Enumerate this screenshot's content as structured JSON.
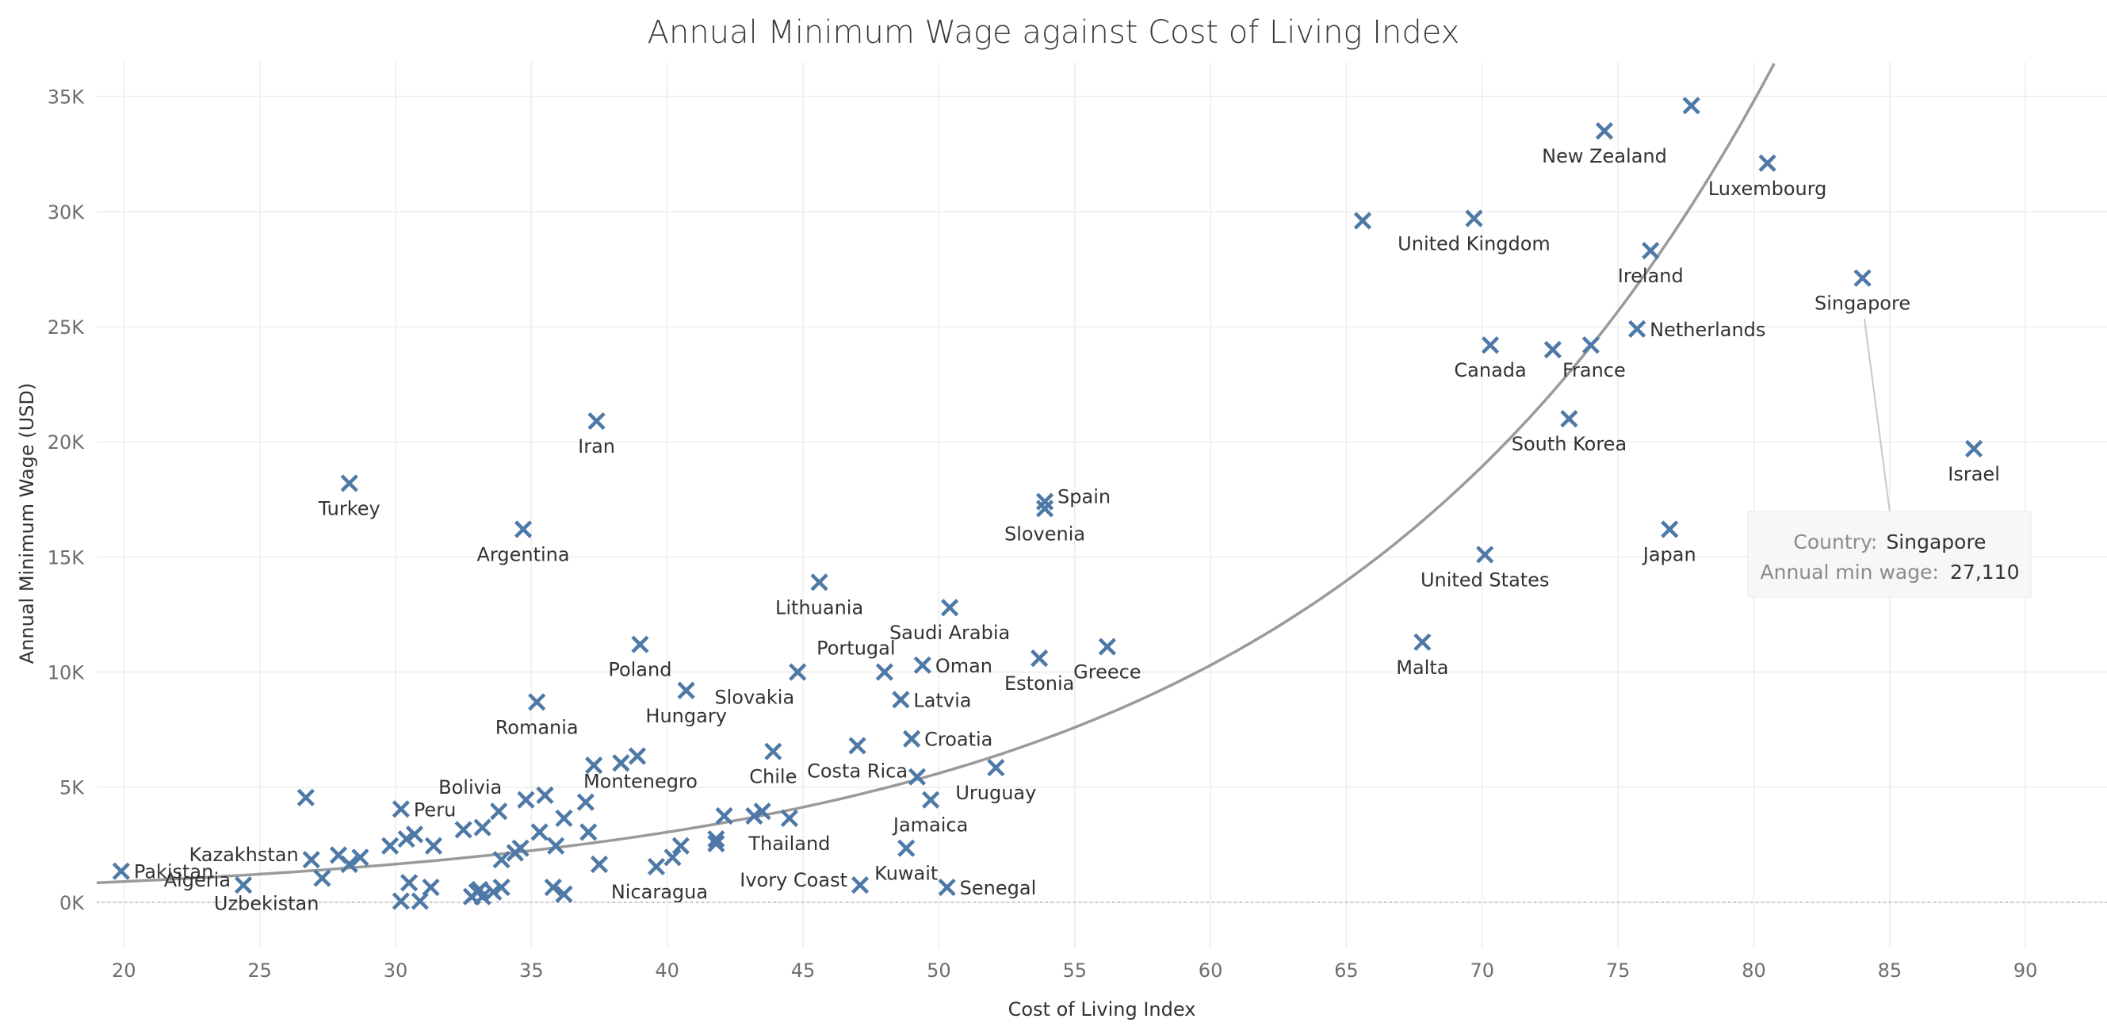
{
  "chart_data": {
    "type": "scatter",
    "title": "Annual Minimum Wage against Cost of Living Index",
    "xlabel": "Cost of Living Index",
    "ylabel": "Annual Minimum Wage (USD)",
    "xlim": [
      19,
      93
    ],
    "ylim": [
      -2000,
      36500
    ],
    "x_ticks": [
      20,
      25,
      30,
      35,
      40,
      45,
      50,
      55,
      60,
      65,
      70,
      75,
      80,
      85,
      90
    ],
    "y_ticks": [
      0,
      5000,
      10000,
      15000,
      20000,
      25000,
      30000,
      35000
    ],
    "y_tick_labels": [
      "0K",
      "5K",
      "10K",
      "15K",
      "20K",
      "25K",
      "30K",
      "35K"
    ],
    "grid": true,
    "marker": "x",
    "marker_color": "#4e79a7",
    "trend_line": {
      "type": "exponential",
      "color": "#9a9a9a"
    },
    "points": [
      {
        "label": "Pakistan",
        "x": 19.9,
        "y": 1350
      },
      {
        "label": "Algeria",
        "x": 24.4,
        "y": 750
      },
      {
        "label": "",
        "x": 26.7,
        "y": 4550
      },
      {
        "label": "Kazakhstan",
        "x": 26.9,
        "y": 1850
      },
      {
        "label": "Uzbekistan",
        "x": 27.3,
        "y": 1050
      },
      {
        "label": "",
        "x": 27.9,
        "y": 2050
      },
      {
        "label": "",
        "x": 28.3,
        "y": 1650
      },
      {
        "label": "Turkey",
        "x": 28.3,
        "y": 18200
      },
      {
        "label": "",
        "x": 28.7,
        "y": 1950
      },
      {
        "label": "",
        "x": 29.8,
        "y": 2450
      },
      {
        "label": "Peru",
        "x": 30.2,
        "y": 4050
      },
      {
        "label": "",
        "x": 30.2,
        "y": 50
      },
      {
        "label": "",
        "x": 30.4,
        "y": 2750
      },
      {
        "label": "",
        "x": 30.5,
        "y": 850
      },
      {
        "label": "",
        "x": 30.7,
        "y": 2950
      },
      {
        "label": "",
        "x": 30.9,
        "y": 50
      },
      {
        "label": "",
        "x": 31.3,
        "y": 650
      },
      {
        "label": "",
        "x": 31.4,
        "y": 2450
      },
      {
        "label": "",
        "x": 32.5,
        "y": 3150
      },
      {
        "label": "",
        "x": 32.8,
        "y": 250
      },
      {
        "label": "",
        "x": 33.0,
        "y": 450
      },
      {
        "label": "",
        "x": 33.1,
        "y": 550
      },
      {
        "label": "",
        "x": 33.2,
        "y": 3250
      },
      {
        "label": "",
        "x": 33.2,
        "y": 250
      },
      {
        "label": "",
        "x": 33.6,
        "y": 450
      },
      {
        "label": "Bolivia",
        "x": 33.8,
        "y": 3950
      },
      {
        "label": "",
        "x": 33.9,
        "y": 1850
      },
      {
        "label": "",
        "x": 33.9,
        "y": 650
      },
      {
        "label": "",
        "x": 34.4,
        "y": 2150
      },
      {
        "label": "",
        "x": 34.6,
        "y": 2350
      },
      {
        "label": "",
        "x": 34.8,
        "y": 4450
      },
      {
        "label": "Argentina",
        "x": 34.7,
        "y": 16200
      },
      {
        "label": "Romania",
        "x": 35.2,
        "y": 8700
      },
      {
        "label": "",
        "x": 35.3,
        "y": 3050
      },
      {
        "label": "",
        "x": 35.5,
        "y": 4650
      },
      {
        "label": "",
        "x": 35.8,
        "y": 650
      },
      {
        "label": "",
        "x": 35.9,
        "y": 2450
      },
      {
        "label": "",
        "x": 36.2,
        "y": 3650
      },
      {
        "label": "",
        "x": 36.2,
        "y": 350
      },
      {
        "label": "",
        "x": 37.0,
        "y": 4350
      },
      {
        "label": "",
        "x": 37.1,
        "y": 3050
      },
      {
        "label": "",
        "x": 37.3,
        "y": 5950
      },
      {
        "label": "",
        "x": 37.5,
        "y": 1650
      },
      {
        "label": "Iran",
        "x": 37.4,
        "y": 20900
      },
      {
        "label": "",
        "x": 38.3,
        "y": 6050
      },
      {
        "label": "Poland",
        "x": 39.0,
        "y": 11200
      },
      {
        "label": "Montenegro",
        "x": 38.9,
        "y": 6350
      },
      {
        "label": "Nicaragua",
        "x": 39.6,
        "y": 1550
      },
      {
        "label": "",
        "x": 40.2,
        "y": 1950
      },
      {
        "label": "",
        "x": 40.5,
        "y": 2450
      },
      {
        "label": "Hungary",
        "x": 40.7,
        "y": 9200
      },
      {
        "label": "",
        "x": 41.8,
        "y": 2750
      },
      {
        "label": "",
        "x": 41.8,
        "y": 2550
      },
      {
        "label": "",
        "x": 42.1,
        "y": 3750
      },
      {
        "label": "",
        "x": 43.2,
        "y": 3750
      },
      {
        "label": "",
        "x": 43.5,
        "y": 3950
      },
      {
        "label": "Chile",
        "x": 43.9,
        "y": 6550
      },
      {
        "label": "Thailand",
        "x": 44.5,
        "y": 3650
      },
      {
        "label": "Slovakia",
        "x": 44.8,
        "y": 10000
      },
      {
        "label": "Lithuania",
        "x": 45.6,
        "y": 13900
      },
      {
        "label": "Costa Rica",
        "x": 47.0,
        "y": 6800
      },
      {
        "label": "Ivory Coast",
        "x": 47.1,
        "y": 750
      },
      {
        "label": "Portugal",
        "x": 48.0,
        "y": 10000
      },
      {
        "label": "Latvia",
        "x": 48.6,
        "y": 8800
      },
      {
        "label": "Kuwait",
        "x": 48.8,
        "y": 2350
      },
      {
        "label": "Croatia",
        "x": 49.0,
        "y": 7100
      },
      {
        "label": "",
        "x": 49.2,
        "y": 5450
      },
      {
        "label": "Oman",
        "x": 49.4,
        "y": 10300
      },
      {
        "label": "Jamaica",
        "x": 49.7,
        "y": 4450
      },
      {
        "label": "Senegal",
        "x": 50.3,
        "y": 650
      },
      {
        "label": "Saudi Arabia",
        "x": 50.4,
        "y": 12800
      },
      {
        "label": "Uruguay",
        "x": 52.1,
        "y": 5850
      },
      {
        "label": "Estonia",
        "x": 53.7,
        "y": 10600
      },
      {
        "label": "Spain",
        "x": 53.9,
        "y": 17400
      },
      {
        "label": "Slovenia",
        "x": 53.9,
        "y": 17100
      },
      {
        "label": "Greece",
        "x": 56.2,
        "y": 11100
      },
      {
        "label": "",
        "x": 65.6,
        "y": 29600
      },
      {
        "label": "Malta",
        "x": 67.8,
        "y": 11300
      },
      {
        "label": "United Kingdom",
        "x": 69.7,
        "y": 29700
      },
      {
        "label": "United States",
        "x": 70.1,
        "y": 15100
      },
      {
        "label": "Canada",
        "x": 70.3,
        "y": 24200
      },
      {
        "label": "",
        "x": 72.6,
        "y": 24000
      },
      {
        "label": "South Korea",
        "x": 73.2,
        "y": 21000
      },
      {
        "label": "France",
        "x": 74.0,
        "y": 24200
      },
      {
        "label": "New Zealand",
        "x": 74.5,
        "y": 33500
      },
      {
        "label": "Netherlands",
        "x": 75.7,
        "y": 24900
      },
      {
        "label": "Ireland",
        "x": 76.2,
        "y": 28300
      },
      {
        "label": "Japan",
        "x": 76.9,
        "y": 16200
      },
      {
        "label": "",
        "x": 77.7,
        "y": 34600
      },
      {
        "label": "Luxembourg",
        "x": 80.5,
        "y": 32100
      },
      {
        "label": "Singapore",
        "x": 84.0,
        "y": 27110
      },
      {
        "label": "Israel",
        "x": 88.1,
        "y": 19700
      }
    ]
  },
  "tooltip": {
    "country_key": "Country:",
    "country_value": "Singapore",
    "wage_key": "Annual min wage:",
    "wage_value": "27,110"
  }
}
